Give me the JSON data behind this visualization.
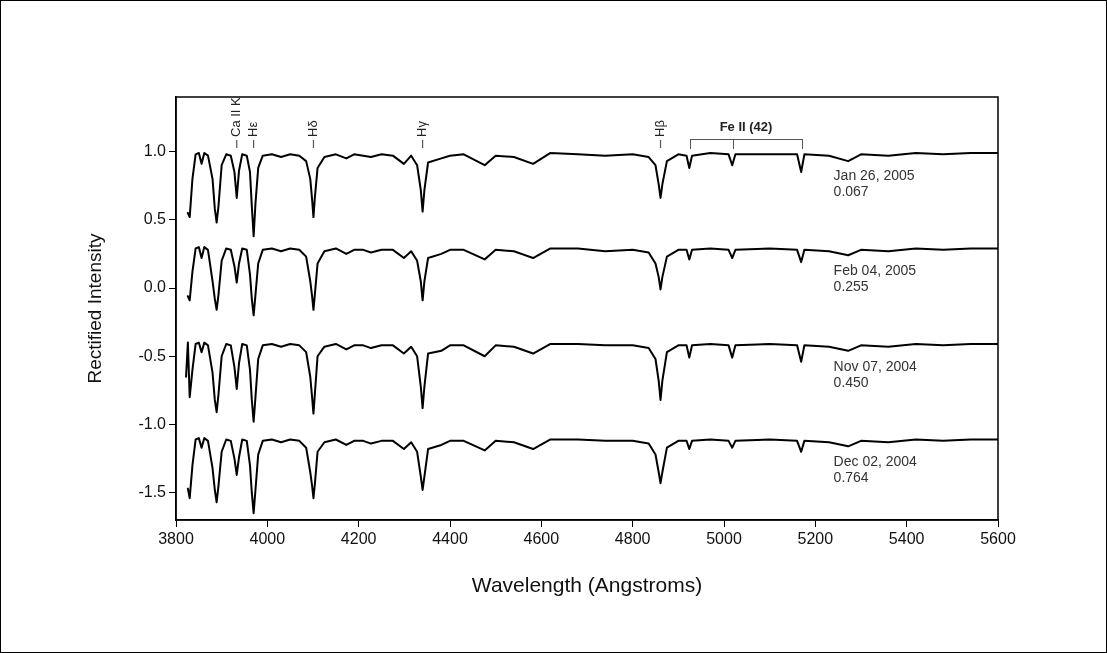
{
  "chart_data": {
    "type": "line",
    "xlabel": "Wavelength (Angstroms)",
    "ylabel": "Rectified Intensity",
    "xlim": [
      3800,
      5600
    ],
    "xticks": [
      3800,
      4000,
      4200,
      4400,
      4600,
      4800,
      5000,
      5200,
      5400,
      5600
    ],
    "ylim": [
      -1.7,
      1.4
    ],
    "yticks": [
      -1.5,
      {
        "value": -1,
        "label": "-1.0"
      },
      -0.5,
      {
        "value": 0,
        "label": "0.0"
      },
      0.5,
      {
        "value": 1,
        "label": "1.0"
      }
    ],
    "marker": "none",
    "line_style": "solid",
    "x": [
      3826,
      3830,
      3836,
      3843,
      3850,
      3856,
      3862,
      3870,
      3880,
      3885,
      3889,
      3893,
      3900,
      3910,
      3920,
      3928,
      3933,
      3938,
      3945,
      3955,
      3962,
      3966,
      3970,
      3974,
      3980,
      3990,
      4010,
      4030,
      4050,
      4070,
      4085,
      4094,
      4098,
      4101,
      4104,
      4110,
      4125,
      4150,
      4173,
      4190,
      4210,
      4227,
      4250,
      4275,
      4299,
      4315,
      4328,
      4336,
      4340,
      4344,
      4352,
      4381,
      4400,
      4430,
      4476,
      4500,
      4540,
      4582,
      4620,
      4680,
      4740,
      4800,
      4835,
      4850,
      4857,
      4861,
      4865,
      4875,
      4900,
      4918,
      4924,
      4930,
      4970,
      5010,
      5018,
      5025,
      5100,
      5160,
      5169,
      5176,
      5230,
      5272,
      5300,
      5360,
      5420,
      5480,
      5540,
      5600
    ],
    "series": [
      {
        "name": "Jan 26, 2005\n0.067",
        "color": "#000000",
        "values": [
          0.55,
          0.52,
          0.8,
          0.98,
          0.99,
          0.91,
          0.99,
          0.97,
          0.8,
          0.58,
          0.48,
          0.6,
          0.9,
          0.98,
          0.97,
          0.85,
          0.66,
          0.86,
          0.98,
          0.97,
          0.85,
          0.6,
          0.38,
          0.62,
          0.88,
          0.97,
          0.98,
          0.96,
          0.98,
          0.97,
          0.93,
          0.8,
          0.65,
          0.52,
          0.66,
          0.88,
          0.96,
          0.98,
          0.95,
          0.98,
          0.97,
          0.96,
          0.98,
          0.97,
          0.91,
          0.97,
          0.9,
          0.72,
          0.56,
          0.72,
          0.92,
          0.95,
          0.97,
          0.98,
          0.9,
          0.97,
          0.96,
          0.91,
          0.99,
          0.98,
          0.97,
          0.98,
          0.96,
          0.9,
          0.76,
          0.66,
          0.76,
          0.93,
          0.98,
          0.97,
          0.88,
          0.97,
          0.99,
          0.98,
          0.9,
          0.98,
          0.98,
          0.98,
          0.85,
          0.98,
          0.97,
          0.93,
          0.98,
          0.97,
          0.99,
          0.98,
          0.99,
          0.99
        ]
      },
      {
        "name": "Feb 04, 2005\n0.255",
        "color": "#000000",
        "values": [
          -0.06,
          -0.09,
          0.12,
          0.29,
          0.3,
          0.22,
          0.3,
          0.28,
          0.05,
          -0.08,
          -0.16,
          -0.05,
          0.2,
          0.29,
          0.28,
          0.16,
          0.04,
          0.18,
          0.29,
          0.28,
          0.1,
          -0.08,
          -0.2,
          -0.05,
          0.18,
          0.28,
          0.29,
          0.27,
          0.29,
          0.28,
          0.23,
          0.05,
          -0.06,
          -0.16,
          -0.05,
          0.18,
          0.27,
          0.29,
          0.25,
          0.28,
          0.28,
          0.26,
          0.28,
          0.28,
          0.22,
          0.27,
          0.2,
          0.05,
          -0.09,
          0.05,
          0.22,
          0.25,
          0.28,
          0.28,
          0.21,
          0.28,
          0.27,
          0.22,
          0.29,
          0.29,
          0.27,
          0.28,
          0.26,
          0.18,
          0.08,
          -0.01,
          0.08,
          0.23,
          0.28,
          0.28,
          0.21,
          0.28,
          0.29,
          0.28,
          0.22,
          0.28,
          0.29,
          0.28,
          0.19,
          0.28,
          0.27,
          0.24,
          0.28,
          0.27,
          0.29,
          0.28,
          0.29,
          0.29
        ]
      },
      {
        "name": "Nov 07, 2004\n0.450",
        "color": "#000000",
        "x": [
          3822,
          3826,
          3830,
          3836,
          3843,
          3850,
          3856,
          3862,
          3870,
          3880,
          3885,
          3889,
          3893,
          3900,
          3910,
          3920,
          3928,
          3933,
          3938,
          3945,
          3955,
          3962,
          3966,
          3970,
          3974,
          3980,
          3990,
          4010,
          4030,
          4050,
          4070,
          4085,
          4094,
          4098,
          4101,
          4104,
          4110,
          4125,
          4150,
          4173,
          4190,
          4210,
          4227,
          4250,
          4275,
          4299,
          4315,
          4328,
          4336,
          4340,
          4344,
          4352,
          4381,
          4400,
          4430,
          4476,
          4500,
          4540,
          4582,
          4620,
          4680,
          4740,
          4800,
          4835,
          4850,
          4857,
          4861,
          4865,
          4875,
          4900,
          4918,
          4924,
          4930,
          4970,
          5010,
          5018,
          5025,
          5100,
          5160,
          5169,
          5176,
          5230,
          5272,
          5300,
          5360,
          5420,
          5480,
          5540,
          5600
        ],
        "values": [
          -0.65,
          -0.4,
          -0.8,
          -0.6,
          -0.41,
          -0.4,
          -0.47,
          -0.4,
          -0.42,
          -0.62,
          -0.82,
          -0.91,
          -0.78,
          -0.5,
          -0.41,
          -0.42,
          -0.58,
          -0.74,
          -0.55,
          -0.41,
          -0.42,
          -0.6,
          -0.82,
          -0.98,
          -0.8,
          -0.52,
          -0.42,
          -0.41,
          -0.43,
          -0.41,
          -0.42,
          -0.47,
          -0.65,
          -0.8,
          -0.92,
          -0.78,
          -0.5,
          -0.43,
          -0.41,
          -0.45,
          -0.42,
          -0.42,
          -0.44,
          -0.42,
          -0.42,
          -0.48,
          -0.43,
          -0.5,
          -0.72,
          -0.88,
          -0.72,
          -0.48,
          -0.46,
          -0.42,
          -0.42,
          -0.5,
          -0.42,
          -0.43,
          -0.48,
          -0.41,
          -0.41,
          -0.42,
          -0.42,
          -0.44,
          -0.52,
          -0.68,
          -0.82,
          -0.68,
          -0.47,
          -0.42,
          -0.42,
          -0.51,
          -0.42,
          -0.41,
          -0.42,
          -0.51,
          -0.42,
          -0.41,
          -0.42,
          -0.54,
          -0.42,
          -0.43,
          -0.46,
          -0.42,
          -0.43,
          -0.41,
          -0.42,
          -0.41,
          -0.41
        ]
      },
      {
        "name": "Dec 02, 2004\n0.764",
        "color": "#000000",
        "values": [
          -1.47,
          -1.54,
          -1.3,
          -1.11,
          -1.1,
          -1.17,
          -1.1,
          -1.12,
          -1.32,
          -1.48,
          -1.57,
          -1.45,
          -1.2,
          -1.11,
          -1.12,
          -1.25,
          -1.37,
          -1.24,
          -1.11,
          -1.12,
          -1.3,
          -1.5,
          -1.65,
          -1.48,
          -1.22,
          -1.12,
          -1.11,
          -1.13,
          -1.11,
          -1.12,
          -1.17,
          -1.35,
          -1.45,
          -1.54,
          -1.44,
          -1.2,
          -1.13,
          -1.11,
          -1.15,
          -1.12,
          -1.12,
          -1.14,
          -1.12,
          -1.12,
          -1.18,
          -1.13,
          -1.2,
          -1.38,
          -1.48,
          -1.38,
          -1.18,
          -1.15,
          -1.12,
          -1.12,
          -1.19,
          -1.12,
          -1.13,
          -1.18,
          -1.11,
          -1.11,
          -1.12,
          -1.12,
          -1.14,
          -1.22,
          -1.35,
          -1.43,
          -1.35,
          -1.17,
          -1.12,
          -1.12,
          -1.18,
          -1.12,
          -1.11,
          -1.12,
          -1.17,
          -1.12,
          -1.11,
          -1.12,
          -1.2,
          -1.12,
          -1.13,
          -1.16,
          -1.12,
          -1.13,
          -1.11,
          -1.12,
          -1.11,
          -1.11
        ]
      }
    ],
    "ref_lines": [
      {
        "axis": "x",
        "value": 3933,
        "label": "Ca II K"
      },
      {
        "axis": "x",
        "value": 3970,
        "label": "Hε"
      },
      {
        "axis": "x",
        "value": 4101,
        "label": "Hδ"
      },
      {
        "axis": "x",
        "value": 4340,
        "label": "Hγ"
      },
      {
        "axis": "x",
        "value": 4861,
        "label": "Hβ"
      }
    ],
    "annotations": [
      "Fe II (42)"
    ]
  }
}
